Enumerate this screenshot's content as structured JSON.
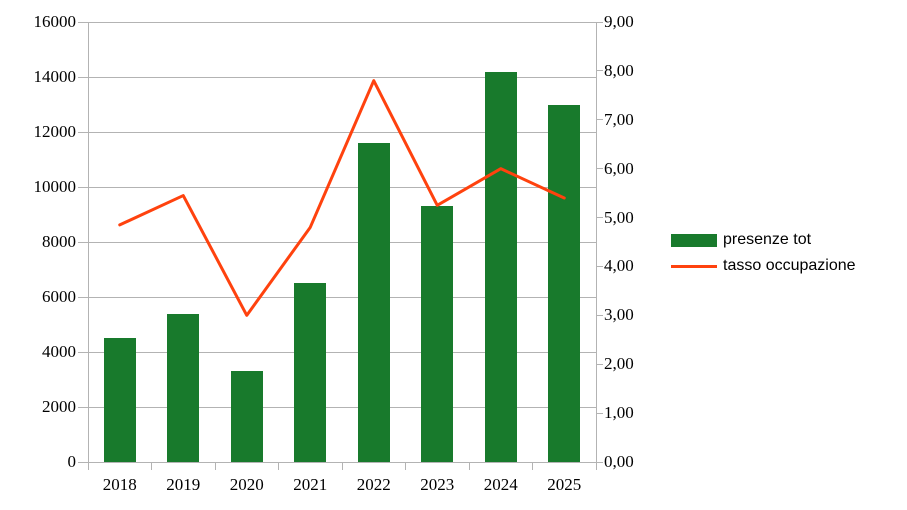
{
  "chart_data": {
    "type": "bar",
    "subtype": "bar-and-line-combo",
    "categories": [
      "2018",
      "2019",
      "2020",
      "2021",
      "2022",
      "2023",
      "2024",
      "2025"
    ],
    "series": [
      {
        "name": "presenze tot",
        "type": "bar",
        "axis": "left",
        "color": "#187A2C",
        "values": [
          4500,
          5400,
          3300,
          6500,
          11600,
          9300,
          14200,
          13000
        ]
      },
      {
        "name": "tasso occupazione",
        "type": "line",
        "axis": "right",
        "color": "#FF420E",
        "values": [
          4.85,
          5.45,
          3.0,
          4.8,
          7.8,
          5.25,
          6.0,
          5.4
        ]
      }
    ],
    "left_axis": {
      "min": 0,
      "max": 16000,
      "step": 2000,
      "tick_labels": [
        "0",
        "2000",
        "4000",
        "6000",
        "8000",
        "10000",
        "12000",
        "14000",
        "16000"
      ]
    },
    "right_axis": {
      "min": 0,
      "max": 9,
      "step": 1,
      "tick_labels": [
        "0,00",
        "1,00",
        "2,00",
        "3,00",
        "4,00",
        "5,00",
        "6,00",
        "7,00",
        "8,00",
        "9,00"
      ]
    },
    "title": "",
    "xlabel": "",
    "ylabel": "",
    "grid": true,
    "legend_position": "right",
    "colors": {
      "grid": "#b3b3b3",
      "axis": "#b3b3b3",
      "text": "#000000",
      "background": "#ffffff"
    }
  }
}
